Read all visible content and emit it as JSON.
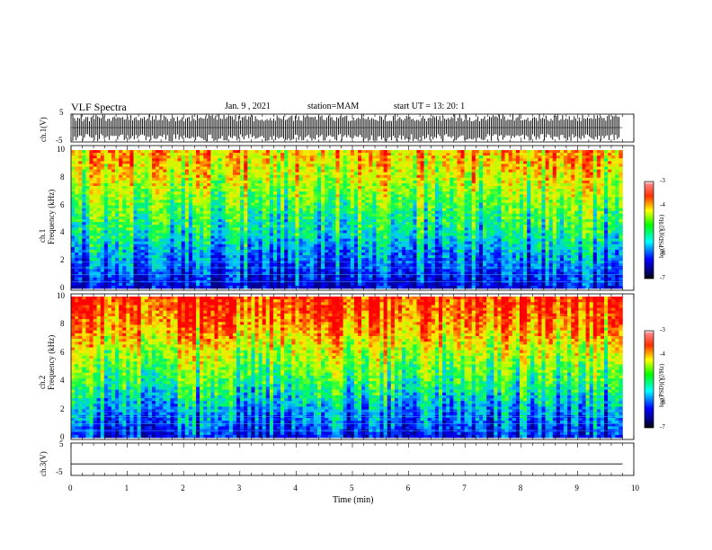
{
  "header": {
    "title": "VLF Spectra",
    "date": "Jan. 9 , 2021",
    "station": "station=MAM",
    "start": "start UT = 13: 20: 1"
  },
  "panels": {
    "ch1_wave_label": "ch.1(V)",
    "ch1_spec_label_line1": "ch.1",
    "ch1_spec_label_line2": "Frequency (kHz)",
    "ch2_spec_label_line1": "ch.2",
    "ch2_spec_label_line2": "Frequency (kHz)",
    "ch3_wave_label": "ch.3(V)",
    "colorbar_label": "log(PSD)(V²/Hz)"
  },
  "axes": {
    "x_label": "Time (min)",
    "x_ticks": [
      "0",
      "1",
      "2",
      "3",
      "4",
      "5",
      "6",
      "7",
      "8",
      "9",
      "10"
    ],
    "freq_ticks": [
      "0",
      "2",
      "4",
      "6",
      "8",
      "10"
    ],
    "wave_ticks": [
      "5",
      "-5"
    ],
    "colorbar_ticks": [
      "-3",
      "-4",
      "-5",
      "-6",
      "-7"
    ]
  },
  "chart_data": [
    {
      "type": "line",
      "name": "ch1 waveform",
      "xlabel": "Time (min)",
      "ylabel": "ch.1(V)",
      "xlim": [
        0,
        10
      ],
      "ylim": [
        -5,
        5
      ],
      "description_values": {
        "amplitude_range": [
          -5,
          5
        ],
        "data_end_min": 9.8
      }
    },
    {
      "type": "heatmap",
      "name": "ch1 spectrogram",
      "xlabel": "Time (min)",
      "ylabel": "Frequency (kHz)",
      "xlim": [
        0,
        10
      ],
      "ylim": [
        0,
        10
      ],
      "color_scale": {
        "label": "log(PSD)(V²/Hz)",
        "min": -7,
        "max": -3
      },
      "frequency_profile_log_psd": [
        {
          "freq_khz": 0.5,
          "value": -6.5
        },
        {
          "freq_khz": 2,
          "value": -6.0
        },
        {
          "freq_khz": 4,
          "value": -5.3
        },
        {
          "freq_khz": 6,
          "value": -4.8
        },
        {
          "freq_khz": 8,
          "value": -4.2
        },
        {
          "freq_khz": 10,
          "value": -3.8
        }
      ]
    },
    {
      "type": "heatmap",
      "name": "ch2 spectrogram",
      "xlabel": "Time (min)",
      "ylabel": "Frequency (kHz)",
      "xlim": [
        0,
        10
      ],
      "ylim": [
        0,
        10
      ],
      "color_scale": {
        "label": "log(PSD)(V²/Hz)",
        "min": -7,
        "max": -3
      },
      "frequency_profile_log_psd": [
        {
          "freq_khz": 0.5,
          "value": -6.3
        },
        {
          "freq_khz": 2,
          "value": -5.8
        },
        {
          "freq_khz": 4,
          "value": -5.0
        },
        {
          "freq_khz": 6,
          "value": -4.4
        },
        {
          "freq_khz": 8,
          "value": -3.6
        },
        {
          "freq_khz": 10,
          "value": -3.2
        }
      ]
    },
    {
      "type": "line",
      "name": "ch3 waveform",
      "xlabel": "Time (min)",
      "ylabel": "ch.3(V)",
      "xlim": [
        0,
        10
      ],
      "ylim": [
        -5,
        5
      ],
      "description_values": {
        "constant_value": -1.5,
        "data_end_min": 9.8
      }
    }
  ],
  "colors": {
    "jet_stops": [
      "#00007f",
      "#0000ff",
      "#00ffff",
      "#00ff00",
      "#ffff00",
      "#ff7f00",
      "#ff0000"
    ]
  }
}
